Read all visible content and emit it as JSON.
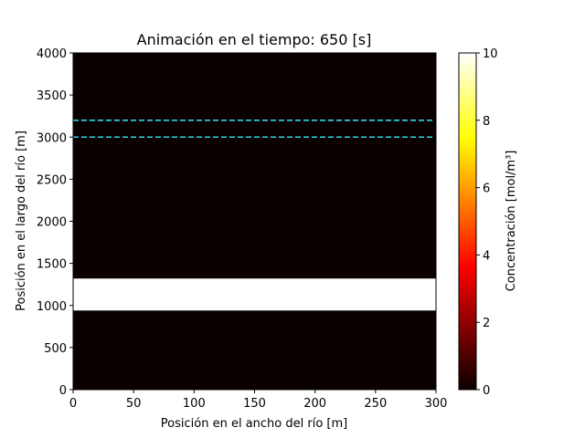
{
  "chart_data": {
    "type": "heatmap",
    "title": "Animación en el tiempo: 650 [s]",
    "xlabel": "Posición en el ancho del río [m]",
    "ylabel": "Posición en el largo del río [m]",
    "xlim": [
      0,
      300
    ],
    "ylim": [
      0,
      4000
    ],
    "x_ticks": [
      0,
      50,
      100,
      150,
      200,
      250,
      300
    ],
    "y_ticks": [
      0,
      500,
      1000,
      1500,
      2000,
      2500,
      3000,
      3500,
      4000
    ],
    "colormap": "hot",
    "colorbar": {
      "label": "Concentración [mol/m³]",
      "range": [
        0,
        10
      ],
      "ticks": [
        0,
        2,
        4,
        6,
        8,
        10
      ]
    },
    "background_value": 0,
    "bands": [
      {
        "y_from": 940,
        "y_to": 1320,
        "value": 10
      }
    ],
    "reference_lines": [
      {
        "y": 3000,
        "style": "dashed",
        "color": "#29d8e8"
      },
      {
        "y": 3200,
        "style": "dashed",
        "color": "#29d8e8"
      }
    ],
    "grid": false
  }
}
